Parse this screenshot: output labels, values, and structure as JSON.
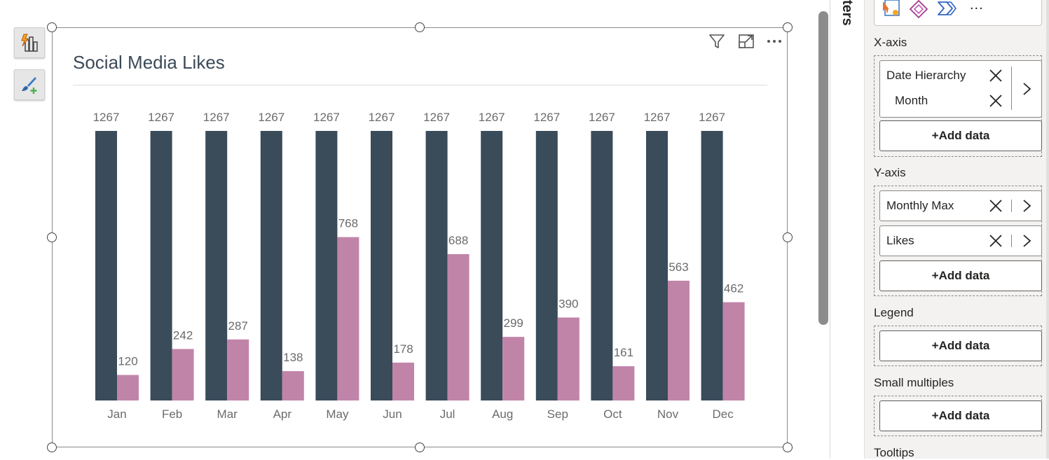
{
  "canvas": {
    "tools": [
      {
        "name": "format-visual-icon"
      },
      {
        "name": "paint-brush-icon"
      }
    ],
    "visual": {
      "header_icons": [
        "filter-icon",
        "focus-mode-icon",
        "more-options-icon"
      ],
      "title": "Social Media Likes"
    }
  },
  "chart_data": {
    "type": "bar",
    "title": "Social Media Likes",
    "categories": [
      "Jan",
      "Feb",
      "Mar",
      "Apr",
      "May",
      "Jun",
      "Jul",
      "Aug",
      "Sep",
      "Oct",
      "Nov",
      "Dec"
    ],
    "series": [
      {
        "values": [
          1267,
          1267,
          1267,
          1267,
          1267,
          1267,
          1267,
          1267,
          1267,
          1267,
          1267,
          1267
        ],
        "color": "#3a4b5a"
      },
      {
        "values": [
          120,
          242,
          287,
          138,
          768,
          178,
          688,
          299,
          390,
          161,
          563,
          462
        ],
        "color": "#c184a9"
      }
    ],
    "ylim": [
      0,
      1267
    ],
    "grid": false,
    "legend": "none",
    "data_labels": true
  },
  "filters_label": "ters",
  "pane": {
    "viz_icons": [
      "custom-visual-icon",
      "power-apps-icon",
      "power-automate-icon",
      "more-visuals-icon"
    ],
    "more_label": "...",
    "sections": {
      "x_axis": {
        "title": "X-axis",
        "field_group": {
          "items": [
            "Date Hierarchy",
            "Month"
          ]
        },
        "add_label": "+Add data"
      },
      "y_axis": {
        "title": "Y-axis",
        "fields": [
          "Monthly Max",
          "Likes"
        ],
        "add_label": "+Add data"
      },
      "legend": {
        "title": "Legend",
        "add_label": "+Add data"
      },
      "small_multiples": {
        "title": "Small multiples",
        "add_label": "+Add data"
      },
      "tooltips": {
        "title": "Tooltips"
      }
    }
  }
}
